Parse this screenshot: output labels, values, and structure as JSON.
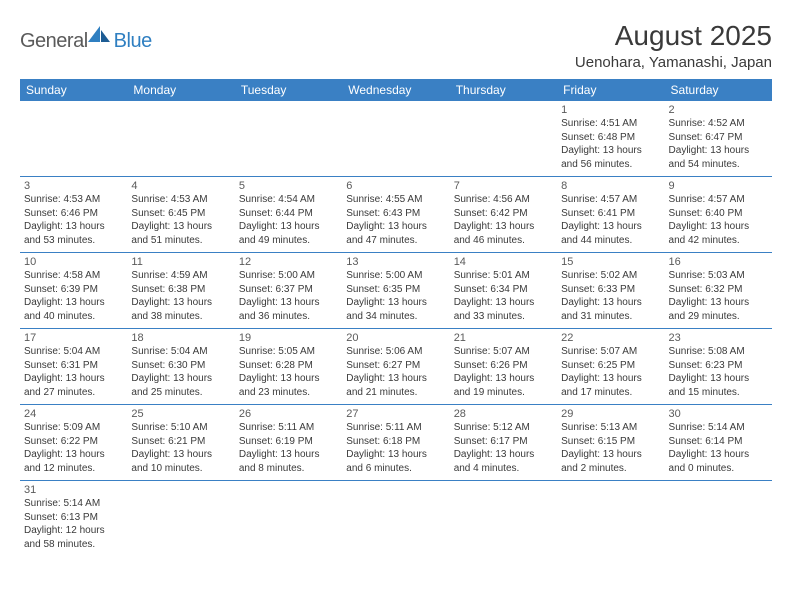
{
  "brand": {
    "part1": "General",
    "part2": "Blue"
  },
  "title": "August 2025",
  "location": "Uenohara, Yamanashi, Japan",
  "colors": {
    "header_bg": "#3a80c4",
    "header_text": "#ffffff",
    "border": "#3a80c4",
    "daynum": "#5a5a5a",
    "body_text": "#3a3a3a",
    "logo_gray": "#5a5a5a",
    "logo_blue": "#2f7fc1"
  },
  "day_headers": [
    "Sunday",
    "Monday",
    "Tuesday",
    "Wednesday",
    "Thursday",
    "Friday",
    "Saturday"
  ],
  "weeks": [
    [
      null,
      null,
      null,
      null,
      null,
      {
        "n": "1",
        "sr": "4:51 AM",
        "ss": "6:48 PM",
        "dl": "13 hours and 56 minutes."
      },
      {
        "n": "2",
        "sr": "4:52 AM",
        "ss": "6:47 PM",
        "dl": "13 hours and 54 minutes."
      }
    ],
    [
      {
        "n": "3",
        "sr": "4:53 AM",
        "ss": "6:46 PM",
        "dl": "13 hours and 53 minutes."
      },
      {
        "n": "4",
        "sr": "4:53 AM",
        "ss": "6:45 PM",
        "dl": "13 hours and 51 minutes."
      },
      {
        "n": "5",
        "sr": "4:54 AM",
        "ss": "6:44 PM",
        "dl": "13 hours and 49 minutes."
      },
      {
        "n": "6",
        "sr": "4:55 AM",
        "ss": "6:43 PM",
        "dl": "13 hours and 47 minutes."
      },
      {
        "n": "7",
        "sr": "4:56 AM",
        "ss": "6:42 PM",
        "dl": "13 hours and 46 minutes."
      },
      {
        "n": "8",
        "sr": "4:57 AM",
        "ss": "6:41 PM",
        "dl": "13 hours and 44 minutes."
      },
      {
        "n": "9",
        "sr": "4:57 AM",
        "ss": "6:40 PM",
        "dl": "13 hours and 42 minutes."
      }
    ],
    [
      {
        "n": "10",
        "sr": "4:58 AM",
        "ss": "6:39 PM",
        "dl": "13 hours and 40 minutes."
      },
      {
        "n": "11",
        "sr": "4:59 AM",
        "ss": "6:38 PM",
        "dl": "13 hours and 38 minutes."
      },
      {
        "n": "12",
        "sr": "5:00 AM",
        "ss": "6:37 PM",
        "dl": "13 hours and 36 minutes."
      },
      {
        "n": "13",
        "sr": "5:00 AM",
        "ss": "6:35 PM",
        "dl": "13 hours and 34 minutes."
      },
      {
        "n": "14",
        "sr": "5:01 AM",
        "ss": "6:34 PM",
        "dl": "13 hours and 33 minutes."
      },
      {
        "n": "15",
        "sr": "5:02 AM",
        "ss": "6:33 PM",
        "dl": "13 hours and 31 minutes."
      },
      {
        "n": "16",
        "sr": "5:03 AM",
        "ss": "6:32 PM",
        "dl": "13 hours and 29 minutes."
      }
    ],
    [
      {
        "n": "17",
        "sr": "5:04 AM",
        "ss": "6:31 PM",
        "dl": "13 hours and 27 minutes."
      },
      {
        "n": "18",
        "sr": "5:04 AM",
        "ss": "6:30 PM",
        "dl": "13 hours and 25 minutes."
      },
      {
        "n": "19",
        "sr": "5:05 AM",
        "ss": "6:28 PM",
        "dl": "13 hours and 23 minutes."
      },
      {
        "n": "20",
        "sr": "5:06 AM",
        "ss": "6:27 PM",
        "dl": "13 hours and 21 minutes."
      },
      {
        "n": "21",
        "sr": "5:07 AM",
        "ss": "6:26 PM",
        "dl": "13 hours and 19 minutes."
      },
      {
        "n": "22",
        "sr": "5:07 AM",
        "ss": "6:25 PM",
        "dl": "13 hours and 17 minutes."
      },
      {
        "n": "23",
        "sr": "5:08 AM",
        "ss": "6:23 PM",
        "dl": "13 hours and 15 minutes."
      }
    ],
    [
      {
        "n": "24",
        "sr": "5:09 AM",
        "ss": "6:22 PM",
        "dl": "13 hours and 12 minutes."
      },
      {
        "n": "25",
        "sr": "5:10 AM",
        "ss": "6:21 PM",
        "dl": "13 hours and 10 minutes."
      },
      {
        "n": "26",
        "sr": "5:11 AM",
        "ss": "6:19 PM",
        "dl": "13 hours and 8 minutes."
      },
      {
        "n": "27",
        "sr": "5:11 AM",
        "ss": "6:18 PM",
        "dl": "13 hours and 6 minutes."
      },
      {
        "n": "28",
        "sr": "5:12 AM",
        "ss": "6:17 PM",
        "dl": "13 hours and 4 minutes."
      },
      {
        "n": "29",
        "sr": "5:13 AM",
        "ss": "6:15 PM",
        "dl": "13 hours and 2 minutes."
      },
      {
        "n": "30",
        "sr": "5:14 AM",
        "ss": "6:14 PM",
        "dl": "13 hours and 0 minutes."
      }
    ],
    [
      {
        "n": "31",
        "sr": "5:14 AM",
        "ss": "6:13 PM",
        "dl": "12 hours and 58 minutes."
      },
      null,
      null,
      null,
      null,
      null,
      null
    ]
  ],
  "labels": {
    "sunrise": "Sunrise:",
    "sunset": "Sunset:",
    "daylight": "Daylight:"
  }
}
